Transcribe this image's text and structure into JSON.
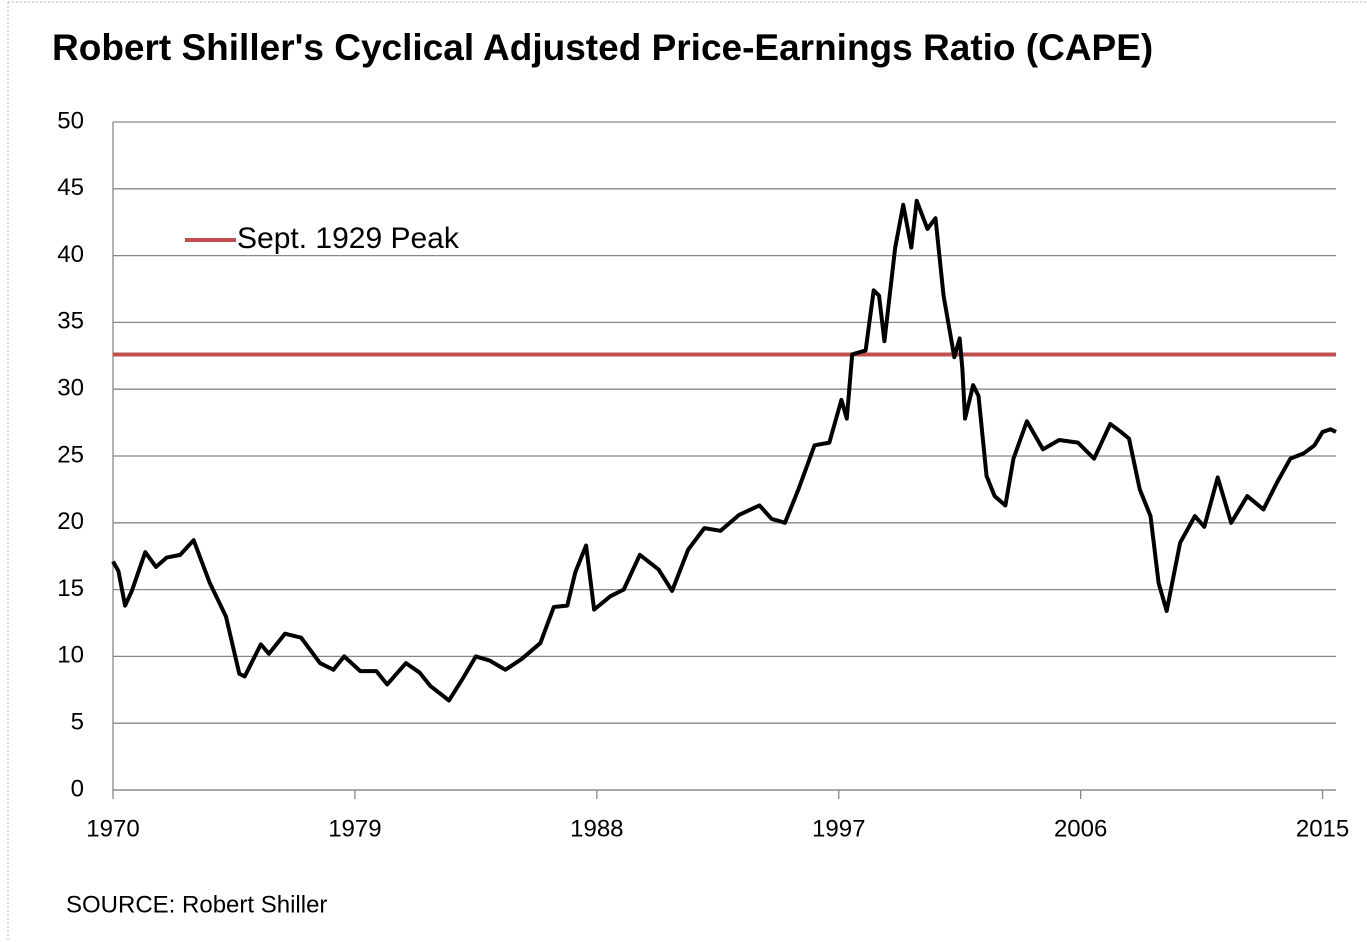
{
  "chart_data": {
    "type": "line",
    "title": "Robert Shiller's Cyclical Adjusted Price-Earnings Ratio (CAPE)",
    "note": "SOURCE:  Robert Shiller",
    "x": [
      1970.0,
      1970.2,
      1970.45,
      1970.7,
      1971.2,
      1971.6,
      1972.0,
      1972.5,
      1973.0,
      1973.6,
      1974.2,
      1974.7,
      1974.9,
      1975.5,
      1975.8,
      1976.4,
      1977.0,
      1977.7,
      1978.2,
      1978.6,
      1979.2,
      1979.8,
      1980.2,
      1980.9,
      1981.4,
      1981.8,
      1982.5,
      1983.0,
      1983.5,
      1984.0,
      1984.6,
      1985.2,
      1985.9,
      1986.4,
      1986.9,
      1987.2,
      1987.6,
      1987.9,
      1988.5,
      1989.0,
      1989.6,
      1990.3,
      1990.8,
      1991.4,
      1992.0,
      1992.6,
      1993.3,
      1994.05,
      1994.5,
      1995.0,
      1995.5,
      1996.1,
      1996.65,
      1997.1,
      1997.3,
      1997.5,
      1998.0,
      1998.3,
      1998.5,
      1998.7,
      1999.1,
      1999.4,
      1999.7,
      1999.9,
      2000.3,
      2000.6,
      2000.9,
      2001.3,
      2001.5,
      2001.6,
      2001.7,
      2002.0,
      2002.2,
      2002.5,
      2002.8,
      2003.2,
      2003.5,
      2004.0,
      2004.6,
      2005.2,
      2005.9,
      2006.5,
      2007.1,
      2007.5,
      2007.8,
      2008.2,
      2008.6,
      2008.9,
      2009.2,
      2009.7,
      2010.25,
      2010.6,
      2011.1,
      2011.6,
      2012.2,
      2012.8,
      2013.3,
      2013.8,
      2014.3,
      2014.7,
      2015.0,
      2015.3,
      2015.5
    ],
    "series": [
      {
        "color": "#000000",
        "values": [
          17.1,
          16.4,
          13.8,
          14.9,
          17.8,
          16.7,
          17.4,
          17.6,
          18.7,
          15.5,
          13.0,
          8.7,
          8.5,
          10.9,
          10.2,
          11.7,
          11.4,
          9.5,
          9.0,
          10.0,
          8.9,
          8.9,
          7.9,
          9.5,
          8.8,
          7.8,
          6.7,
          8.3,
          10.0,
          9.7,
          9.0,
          9.8,
          11.0,
          13.7,
          13.8,
          16.3,
          18.3,
          13.5,
          14.5,
          15.0,
          17.6,
          16.5,
          14.9,
          18.0,
          19.6,
          19.4,
          20.6,
          21.3,
          20.3,
          20.0,
          22.5,
          25.8,
          26.0,
          29.2,
          27.8,
          32.6,
          32.9,
          37.4,
          37.0,
          33.6,
          40.6,
          43.8,
          40.6,
          44.1,
          42.0,
          42.8,
          37.0,
          32.4,
          33.8,
          31.5,
          27.8,
          30.3,
          29.5,
          23.5,
          22.0,
          21.3,
          24.8,
          27.6,
          25.5,
          26.2,
          26.0,
          24.8,
          27.4,
          26.8,
          26.3,
          22.5,
          20.5,
          15.5,
          13.4,
          18.5,
          20.5,
          19.7,
          23.4,
          20.0,
          22.0,
          21.0,
          23.0,
          24.8,
          25.2,
          25.8,
          26.8,
          27.0,
          26.8
        ]
      }
    ],
    "reference_line": {
      "name": "Sept. 1929 Peak",
      "value": 32.6,
      "color": "#c0504d"
    },
    "xlim": [
      1970,
      2015.5
    ],
    "xticks": [
      1970,
      1979,
      1988,
      1997,
      2006,
      2015
    ],
    "ylim": [
      0,
      50
    ],
    "yticks": [
      0,
      5,
      10,
      15,
      20,
      25,
      30,
      35,
      40,
      45,
      50
    ],
    "grid": true
  }
}
